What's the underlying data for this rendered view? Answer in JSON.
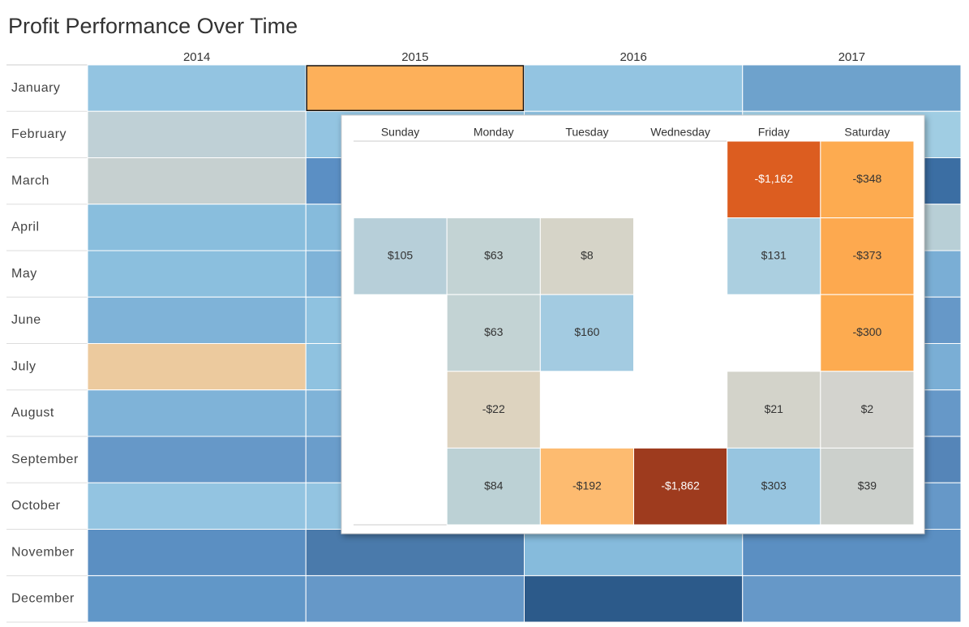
{
  "title": "Profit Performance Over Time",
  "heatmap": {
    "years": [
      "2014",
      "2015",
      "2016",
      "2017"
    ],
    "months": [
      "January",
      "February",
      "March",
      "April",
      "May",
      "June",
      "July",
      "August",
      "September",
      "October",
      "November",
      "December"
    ],
    "colors": [
      [
        "#93c4e1",
        "#fdb05a",
        "#93c4e1",
        "#6ea2cc"
      ],
      [
        "#bfd0d6",
        "#93c4e1",
        "#8fc2e0",
        "#a0cde3"
      ],
      [
        "#c6d0d0",
        "#5b8fc4",
        "#7fb3d8",
        "#3b6ea3"
      ],
      [
        "#89bedd",
        "#86bbdc",
        "#93c4e1",
        "#b8cfd6"
      ],
      [
        "#8bbfde",
        "#7fb3d8",
        "#86bbdc",
        "#7aaed5"
      ],
      [
        "#7fb3d8",
        "#8fc2e0",
        "#7fb3d8",
        "#6698c8"
      ],
      [
        "#ecca9e",
        "#8fc2e0",
        "#86bbdc",
        "#7aaed5"
      ],
      [
        "#7fb3d8",
        "#7fb3d8",
        "#7fb3d8",
        "#6698c8"
      ],
      [
        "#6698c8",
        "#6a9dcb",
        "#6a9dcb",
        "#5585b8"
      ],
      [
        "#93c4e1",
        "#93c4e1",
        "#86bbdc",
        "#6698c8"
      ],
      [
        "#5b8fc2",
        "#4a7aab",
        "#86bbdc",
        "#5b8fc2"
      ],
      [
        "#6197c8",
        "#6698c8",
        "#2c5a8a",
        "#6698c8"
      ]
    ],
    "selected": [
      0,
      1
    ]
  },
  "tooltip": {
    "days": [
      "Sunday",
      "Monday",
      "Tuesday",
      "Wednesday",
      "Friday",
      "Saturday"
    ],
    "values": [
      [
        null,
        null,
        null,
        null,
        -1162,
        -348
      ],
      [
        105,
        63,
        8,
        null,
        131,
        -373
      ],
      [
        null,
        63,
        160,
        null,
        null,
        -300
      ],
      [
        null,
        -22,
        null,
        null,
        21,
        2
      ],
      [
        null,
        84,
        -192,
        -1862,
        303,
        39
      ]
    ],
    "value_labels": [
      [
        null,
        null,
        null,
        null,
        "-$1,162",
        "-$348"
      ],
      [
        "$105",
        "$63",
        "$8",
        null,
        "$131",
        "-$373"
      ],
      [
        null,
        "$63",
        "$160",
        null,
        null,
        "-$300"
      ],
      [
        null,
        "-$22",
        null,
        null,
        "$21",
        "$2"
      ],
      [
        null,
        "$84",
        "-$192",
        "-$1,862",
        "$303",
        "$39"
      ]
    ],
    "colors": [
      [
        null,
        null,
        null,
        null,
        "#dc5d20",
        "#fdab50"
      ],
      [
        "#b7cfd9",
        "#c3d3d4",
        "#d6d4c8",
        null,
        "#abcfe0",
        "#fda94f"
      ],
      [
        null,
        "#c3d3d4",
        "#a3cbe1",
        null,
        null,
        "#fdab50"
      ],
      [
        null,
        "#ddd3bf",
        null,
        null,
        "#d3d3ca",
        "#d3d3ce"
      ],
      [
        null,
        "#bcd1d5",
        "#fdbb70",
        "#9e3b1e",
        "#97c5e0",
        "#ccd0cc"
      ]
    ]
  }
}
